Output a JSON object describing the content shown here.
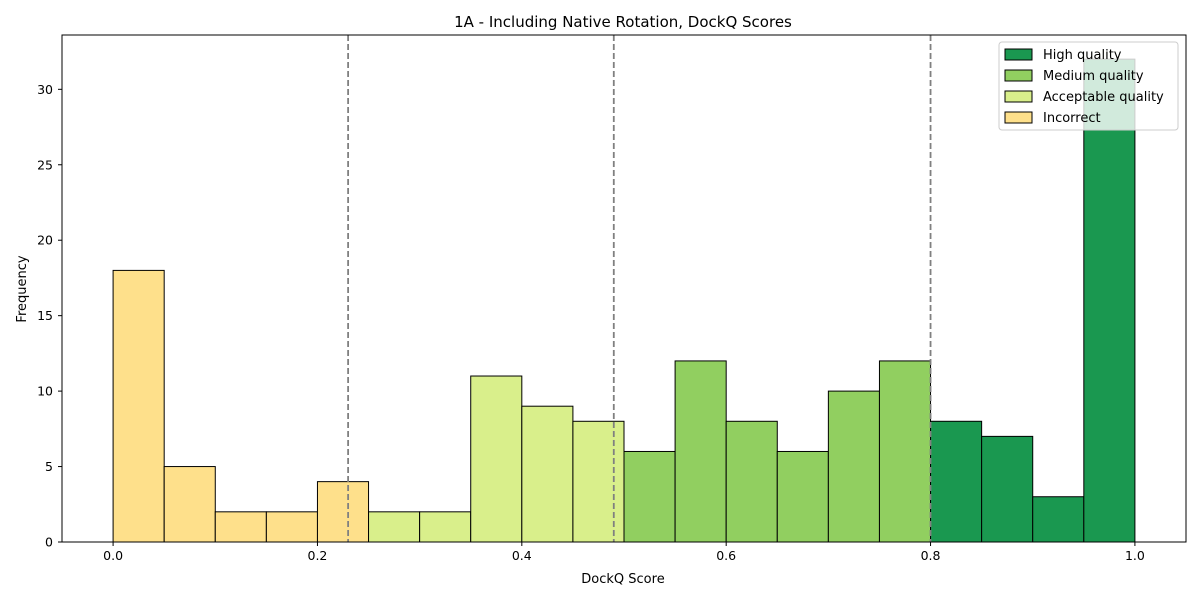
{
  "chart_data": {
    "type": "bar",
    "title": "1A - Including Native Rotation, DockQ Scores",
    "xlabel": "DockQ Score",
    "ylabel": "Frequency",
    "xlim": [
      -0.05,
      1.05
    ],
    "ylim": [
      0,
      33.6
    ],
    "xticks": [
      0.0,
      0.2,
      0.4,
      0.6,
      0.8,
      1.0
    ],
    "xtick_labels": [
      "0.0",
      "0.2",
      "0.4",
      "0.6",
      "0.8",
      "1.0"
    ],
    "yticks": [
      0,
      5,
      10,
      15,
      20,
      25,
      30
    ],
    "ytick_labels": [
      "0",
      "5",
      "10",
      "15",
      "20",
      "25",
      "30"
    ],
    "thresholds": [
      0.23,
      0.49,
      0.8
    ],
    "bin_width": 0.05,
    "bins": [
      {
        "x0": 0.0,
        "value": 18,
        "category": "incorrect"
      },
      {
        "x0": 0.05,
        "value": 5,
        "category": "incorrect"
      },
      {
        "x0": 0.1,
        "value": 2,
        "category": "incorrect"
      },
      {
        "x0": 0.15,
        "value": 2,
        "category": "incorrect"
      },
      {
        "x0": 0.2,
        "value": 4,
        "category": "incorrect"
      },
      {
        "x0": 0.25,
        "value": 2,
        "category": "acceptable"
      },
      {
        "x0": 0.3,
        "value": 2,
        "category": "acceptable"
      },
      {
        "x0": 0.35,
        "value": 11,
        "category": "acceptable"
      },
      {
        "x0": 0.4,
        "value": 9,
        "category": "acceptable"
      },
      {
        "x0": 0.45,
        "value": 8,
        "category": "acceptable"
      },
      {
        "x0": 0.5,
        "value": 6,
        "category": "medium"
      },
      {
        "x0": 0.55,
        "value": 12,
        "category": "medium"
      },
      {
        "x0": 0.6,
        "value": 8,
        "category": "medium"
      },
      {
        "x0": 0.65,
        "value": 6,
        "category": "medium"
      },
      {
        "x0": 0.7,
        "value": 10,
        "category": "medium"
      },
      {
        "x0": 0.75,
        "value": 12,
        "category": "medium"
      },
      {
        "x0": 0.8,
        "value": 8,
        "category": "high"
      },
      {
        "x0": 0.85,
        "value": 7,
        "category": "high"
      },
      {
        "x0": 0.9,
        "value": 3,
        "category": "high"
      },
      {
        "x0": 0.95,
        "value": 32,
        "category": "high"
      }
    ],
    "categories": {
      "high": {
        "name": "High quality",
        "color": "#1a9850"
      },
      "medium": {
        "name": "Medium quality",
        "color": "#91cf60"
      },
      "acceptable": {
        "name": "Acceptable quality",
        "color": "#d9ef8b"
      },
      "incorrect": {
        "name": "Incorrect",
        "color": "#fee08b"
      }
    },
    "legend_order": [
      "high",
      "medium",
      "acceptable",
      "incorrect"
    ],
    "legend_position": "top-right",
    "grid": false
  }
}
